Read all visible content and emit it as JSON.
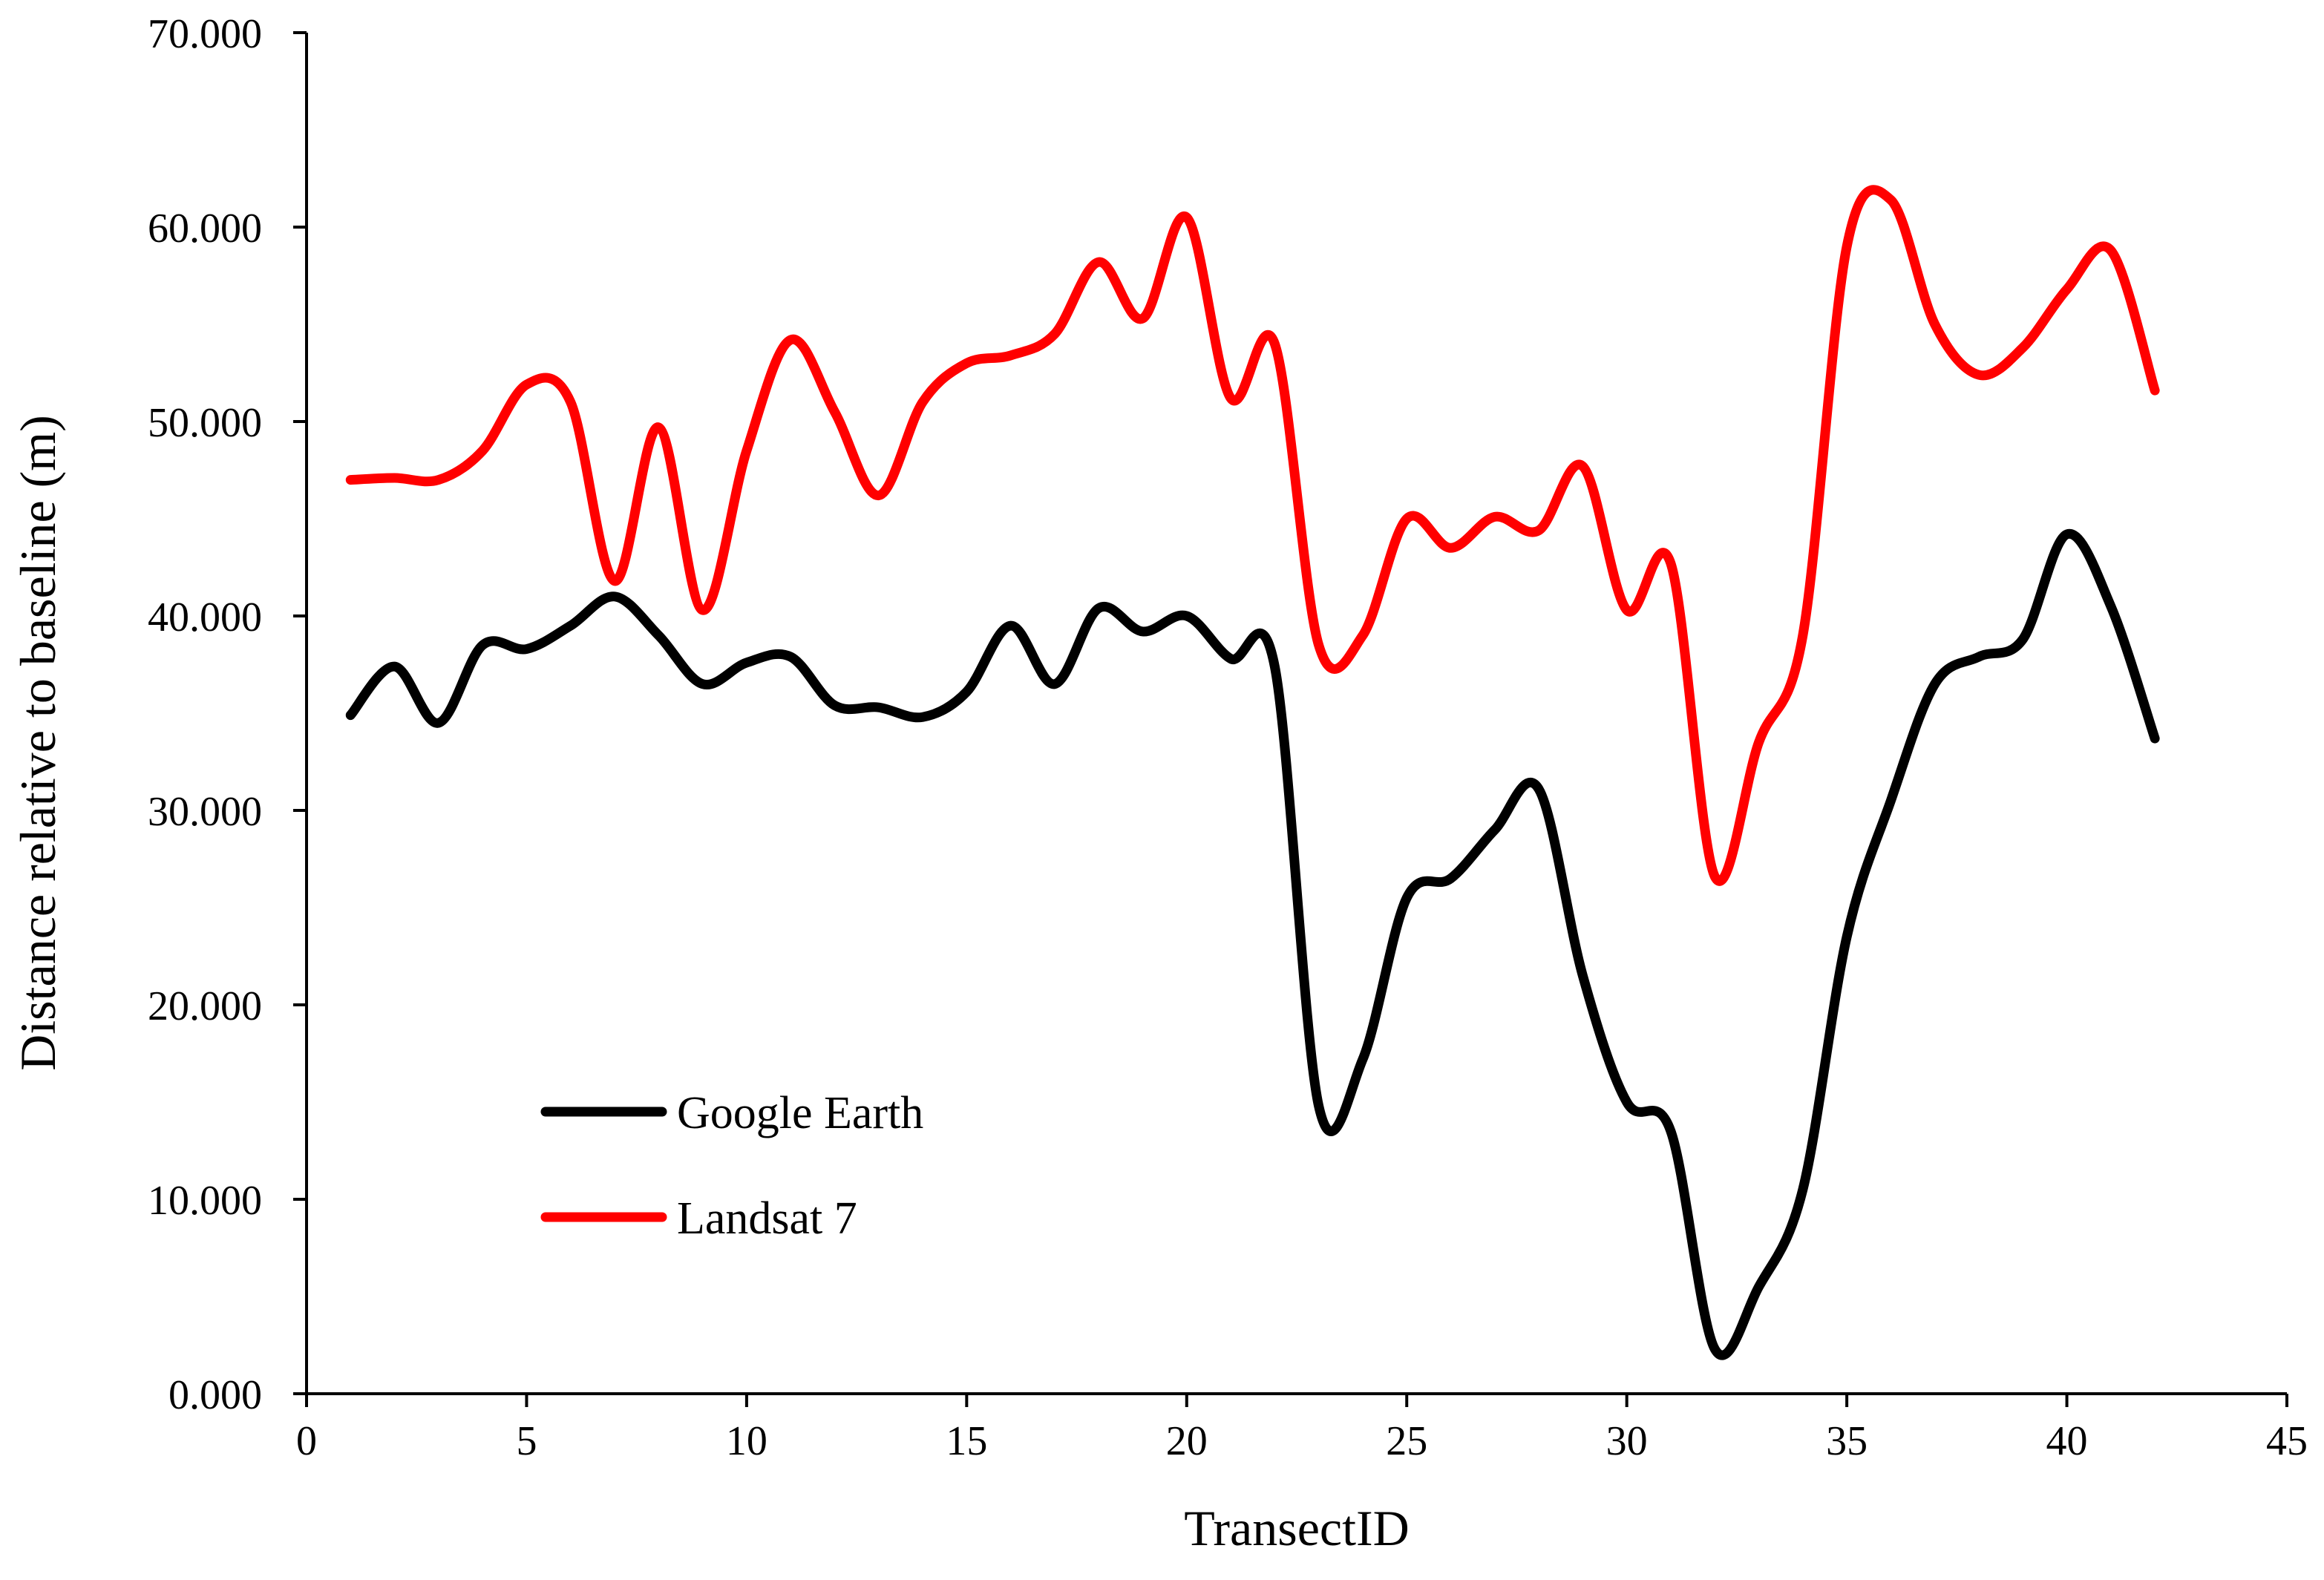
{
  "chart_data": {
    "type": "line",
    "title": "",
    "xlabel": "TransectID",
    "ylabel": "Distance relative to baseline (m)",
    "xlim": [
      0,
      45
    ],
    "ylim": [
      0,
      70
    ],
    "x_ticks": [
      0,
      5,
      10,
      15,
      20,
      25,
      30,
      35,
      40,
      45
    ],
    "x_tick_labels": [
      "0",
      "5",
      "10",
      "15",
      "20",
      "25",
      "30",
      "35",
      "40",
      "45"
    ],
    "y_ticks": [
      0,
      10,
      20,
      30,
      40,
      50,
      60,
      70
    ],
    "y_tick_labels": [
      "0.000",
      "10.000",
      "20.000",
      "30.000",
      "40.000",
      "50.000",
      "60.000",
      "70.000"
    ],
    "grid": false,
    "legend_position": "lower-left",
    "smooth": true,
    "series": [
      {
        "name": "Google Earth",
        "color": "#000000",
        "x": [
          1,
          2,
          3,
          4,
          5,
          6,
          7,
          8,
          9,
          10,
          11,
          12,
          13,
          14,
          15,
          16,
          17,
          18,
          19,
          20,
          21,
          22,
          23,
          24,
          25,
          26,
          27,
          28,
          29,
          30,
          31,
          32,
          33,
          34,
          35,
          36,
          37,
          38,
          39,
          40,
          41,
          42
        ],
        "y": [
          34.9,
          37.4,
          34.5,
          38.5,
          38.3,
          39.5,
          41.0,
          39.0,
          36.5,
          37.6,
          37.9,
          35.4,
          35.3,
          34.8,
          36.1,
          39.5,
          36.5,
          40.4,
          39.2,
          40.0,
          37.8,
          37.4,
          14.8,
          17.2,
          25.5,
          26.5,
          29.0,
          31.1,
          21.5,
          15.0,
          13.5,
          2.3,
          5.5,
          10.5,
          23.5,
          30.5,
          36.5,
          37.9,
          38.8,
          44.2,
          40.5,
          33.7
        ]
      },
      {
        "name": "Landsat 7",
        "color": "#ff0000",
        "x": [
          1,
          2,
          3,
          4,
          5,
          6,
          7,
          8,
          9,
          10,
          11,
          12,
          13,
          14,
          15,
          16,
          17,
          18,
          19,
          20,
          21,
          22,
          23,
          24,
          25,
          26,
          27,
          28,
          29,
          30,
          31,
          32,
          33,
          34,
          35,
          36,
          37,
          38,
          39,
          40,
          41,
          42
        ],
        "y": [
          47.0,
          47.1,
          47.0,
          48.5,
          51.9,
          51.0,
          41.8,
          49.7,
          40.3,
          48.5,
          54.2,
          50.5,
          46.2,
          51.0,
          53.0,
          53.4,
          54.5,
          58.2,
          55.3,
          60.5,
          51.2,
          54.0,
          38.5,
          39.0,
          45.0,
          43.5,
          45.1,
          44.4,
          47.7,
          40.3,
          42.7,
          26.6,
          33.5,
          39.0,
          59.0,
          61.4,
          55.0,
          52.4,
          53.8,
          56.8,
          58.8,
          51.6
        ]
      }
    ]
  }
}
